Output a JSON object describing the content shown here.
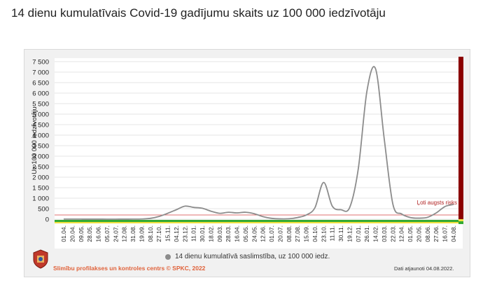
{
  "title": "14 dienu kumulatīvais Covid-19 gadījumu skaits uz 100 000 iedzīvotāju",
  "legend_label": "14 dienu kumulatīvā saslimstība, uz 100 000 iedz.",
  "footer": {
    "source": "Slimību profilakses un kontroles centrs © SPKC, 2022",
    "updated": "Dati atjaunoti 04.08.2022."
  },
  "colors": {
    "line": "#8c8c8c",
    "risk_line": "#e07070",
    "risk_label": "#b02020",
    "risk_bar": "#8b0000",
    "green_band": "#33aa33",
    "yellow_band": "#f0e040",
    "footer_source": "#e0623a"
  },
  "chart_data": {
    "type": "line",
    "title": "14 dienu kumulatīvais Covid-19 gadījumu skaits uz 100 000 iedzīvotāju",
    "xlabel": "",
    "ylabel": "Uz 100 000 iedzīvotāju",
    "ylim": [
      0,
      7500
    ],
    "yticks": [
      0,
      500,
      1000,
      1500,
      2000,
      2500,
      3000,
      3500,
      4000,
      4500,
      5000,
      5500,
      6000,
      6500,
      7000,
      7500
    ],
    "ytick_labels": [
      "0",
      "500",
      "1 000",
      "1 500",
      "2 000",
      "2 500",
      "3 000",
      "3 500",
      "4 000",
      "4 500",
      "5 000",
      "5 500",
      "6 000",
      "6 500",
      "7 000",
      "7 500"
    ],
    "x_tick_labels": [
      "01.04.",
      "20.04.",
      "09.05.",
      "28.05.",
      "16.06.",
      "05.07.",
      "24.07.",
      "12.08.",
      "31.08.",
      "19.09.",
      "08.10.",
      "27.10.",
      "15.11.",
      "04.12.",
      "23.12.",
      "11.01.",
      "30.01.",
      "18.02.",
      "09.03.",
      "28.03.",
      "16.04.",
      "05.05.",
      "24.05.",
      "12.06.",
      "01.07.",
      "20.07.",
      "08.08.",
      "27.08.",
      "15.09.",
      "04.10.",
      "23.10.",
      "11.11.",
      "30.11.",
      "19.12.",
      "07.01.",
      "26.01.",
      "14.02.",
      "03.03.",
      "22.03.",
      "12.04.",
      "01.05.",
      "20.05.",
      "08.06.",
      "27.06.",
      "16.07.",
      "04.08."
    ],
    "grid": true,
    "legend_position": "bottom",
    "series": [
      {
        "name": "14 dienu kumulatīvā saslimstība, uz 100 000 iedz.",
        "values": [
          5,
          4,
          3,
          2,
          2,
          1,
          1,
          2,
          3,
          8,
          40,
          130,
          280,
          450,
          620,
          560,
          520,
          380,
          280,
          330,
          300,
          330,
          260,
          120,
          40,
          15,
          20,
          80,
          200,
          550,
          1750,
          620,
          450,
          550,
          2400,
          6100,
          7150,
          3800,
          700,
          250,
          80,
          50,
          90,
          300,
          600,
          700
        ]
      }
    ],
    "risk_threshold": {
      "value": 200,
      "label": "Ļoti augsts risks"
    }
  }
}
